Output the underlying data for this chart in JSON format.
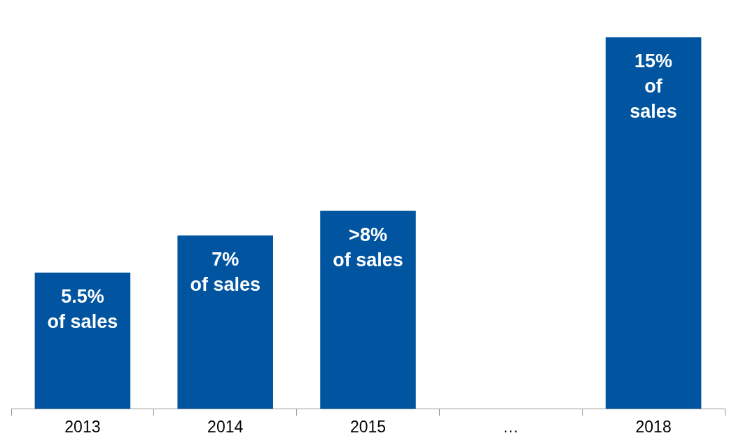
{
  "chart_data": {
    "type": "bar",
    "categories": [
      "2013",
      "2014",
      "2015",
      "…",
      "2018"
    ],
    "values": [
      5.5,
      7,
      8,
      null,
      15
    ],
    "color": "#0054a0",
    "value_labels": [
      "5.5%\nof sales",
      "7%\nof sales",
      ">8%\nof sales",
      null,
      "15%\nof\nsales"
    ],
    "grid": false,
    "legend": false
  }
}
